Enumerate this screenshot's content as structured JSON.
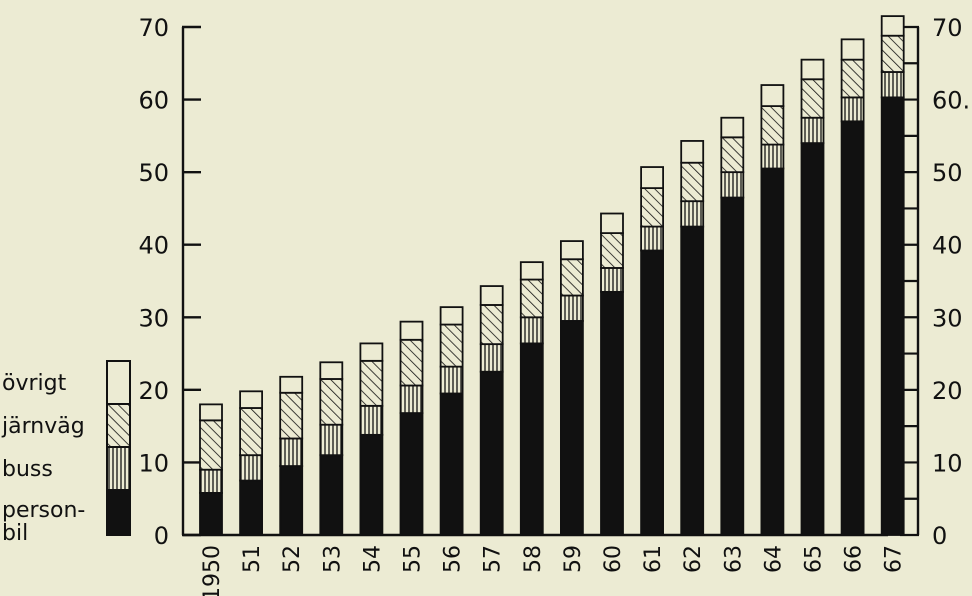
{
  "chart_data": {
    "type": "bar",
    "stacked": true,
    "categories": [
      "1950",
      "51",
      "52",
      "53",
      "54",
      "55",
      "56",
      "57",
      "58",
      "59",
      "60",
      "61",
      "62",
      "63",
      "64",
      "65",
      "66",
      "67"
    ],
    "series": [
      {
        "name": "personbil",
        "pattern": "solid",
        "values": [
          5.8,
          7.5,
          9.5,
          11,
          13.8,
          16.8,
          19.5,
          22.5,
          26.4,
          29.5,
          33.5,
          39.2,
          42.5,
          46.5,
          50.5,
          54,
          57,
          60.3
        ]
      },
      {
        "name": "buss",
        "pattern": "vertical-lines",
        "values": [
          3.2,
          3.5,
          3.8,
          4.2,
          4,
          3.8,
          3.7,
          3.8,
          3.6,
          3.5,
          3.3,
          3.3,
          3.5,
          3.5,
          3.3,
          3.5,
          3.3,
          3.5
        ]
      },
      {
        "name": "järnväg",
        "pattern": "diagonal-hatch",
        "values": [
          6.8,
          6.5,
          6.3,
          6.3,
          6.2,
          6.3,
          5.8,
          5.4,
          5.2,
          5,
          4.8,
          5.3,
          5.3,
          4.8,
          5.3,
          5.3,
          5.2,
          5
        ]
      },
      {
        "name": "övrigt",
        "pattern": "open",
        "values": [
          2.2,
          2.3,
          2.2,
          2.3,
          2.4,
          2.5,
          2.4,
          2.6,
          2.4,
          2.5,
          2.7,
          2.9,
          3,
          2.7,
          2.9,
          2.7,
          2.8,
          2.7
        ]
      }
    ],
    "yticks": [
      0,
      10,
      20,
      30,
      40,
      50,
      60,
      70
    ],
    "ylim": [
      0,
      70
    ],
    "y_axis_right": true,
    "right_axis_tick_labels": [
      "0",
      "10",
      "20",
      "30",
      "40",
      "50",
      "60.",
      "70"
    ],
    "legend": {
      "placement": "left",
      "labels": [
        "övrigt",
        "järnväg",
        "buss",
        "person-",
        "bil"
      ]
    },
    "colors": {
      "background": "#ecebd3",
      "ink": "#111111"
    },
    "grid": false
  }
}
